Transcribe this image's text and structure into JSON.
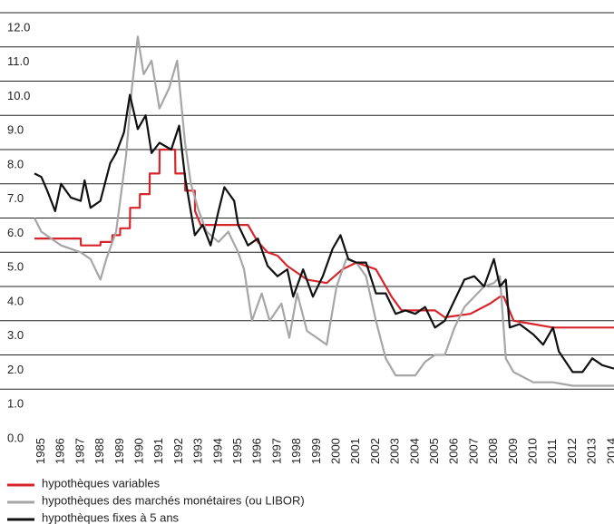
{
  "chart_data": {
    "type": "line",
    "xlim": [
      1984.65,
      2014.1
    ],
    "xticks": [
      1985,
      1986,
      1987,
      1988,
      1989,
      1990,
      1991,
      1992,
      1993,
      1994,
      1995,
      1996,
      1997,
      1998,
      1999,
      2000,
      2001,
      2002,
      2003,
      2004,
      2005,
      2006,
      2007,
      2008,
      2009,
      2010,
      2011,
      2012,
      2013,
      2014
    ],
    "ylim": [
      0,
      12
    ],
    "yticks": [
      {
        "value": 0,
        "label": "0.0"
      },
      {
        "value": 1,
        "label": "1.0"
      },
      {
        "value": 2,
        "label": "2.0"
      },
      {
        "value": 3,
        "label": "3.0"
      },
      {
        "value": 4,
        "label": "4.0"
      },
      {
        "value": 5,
        "label": "5.0"
      },
      {
        "value": 6,
        "label": "6.0"
      },
      {
        "value": 7,
        "label": "7.0"
      },
      {
        "value": 8,
        "label": "8.0"
      },
      {
        "value": 9,
        "label": "9.0"
      },
      {
        "value": 10,
        "label": "10.0"
      },
      {
        "value": 11,
        "label": "11.0"
      },
      {
        "value": 12,
        "label": "12.0"
      }
    ],
    "grid": true,
    "series": [
      {
        "name": "hypothèques variables",
        "color": "#d7262b",
        "x": [
          1984.65,
          1987,
          1987.01,
          1988,
          1988.01,
          1988.6,
          1988.61,
          1989,
          1989.01,
          1989.5,
          1989.51,
          1990,
          1990.01,
          1990.5,
          1990.51,
          1991,
          1991.01,
          1991.8,
          1991.81,
          1992.3,
          1992.31,
          1992.8,
          1992.81,
          1993.1,
          1995.5,
          1996,
          1996.5,
          1997,
          1997.5,
          1998.5,
          1999.5,
          2000.3,
          2001,
          2002,
          2002.8,
          2003.3,
          2005,
          2005.5,
          2006.8,
          2007.8,
          2008.3,
          2008.5,
          2009,
          2010,
          2011,
          2014.1
        ],
        "values": [
          5.4,
          5.4,
          5.2,
          5.2,
          5.3,
          5.3,
          5.5,
          5.5,
          5.7,
          5.7,
          6.3,
          6.3,
          6.7,
          6.7,
          7.3,
          7.3,
          8.0,
          8.0,
          7.3,
          7.3,
          6.8,
          6.8,
          6.2,
          5.8,
          5.8,
          5.3,
          5.0,
          4.9,
          4.6,
          4.2,
          4.1,
          4.5,
          4.7,
          4.5,
          3.7,
          3.3,
          3.3,
          3.1,
          3.2,
          3.5,
          3.7,
          3.7,
          3.0,
          2.9,
          2.8,
          2.8
        ]
      },
      {
        "name": "hypothèques des marchés monétaires (ou LIBOR)",
        "color": "#a6a6a6",
        "x": [
          1984.65,
          1985,
          1985.5,
          1986,
          1987,
          1987.5,
          1988,
          1988.3,
          1988.8,
          1989.3,
          1989.6,
          1989.9,
          1990.2,
          1990.6,
          1991,
          1991.5,
          1991.9,
          1992.3,
          1992.6,
          1993,
          1993.4,
          1994,
          1994.5,
          1995,
          1995.3,
          1995.7,
          1996.2,
          1996.6,
          1997.2,
          1997.6,
          1998,
          1998.5,
          1999,
          1999.5,
          2000,
          2000.5,
          2001,
          2001.5,
          2002,
          2002.5,
          2003,
          2004,
          2004.5,
          2005,
          2005.5,
          2006,
          2006.5,
          2007.5,
          2008,
          2008.3,
          2008.6,
          2009,
          2010,
          2011,
          2012,
          2013,
          2014.1
        ],
        "values": [
          6.0,
          5.6,
          5.4,
          5.2,
          5.0,
          4.8,
          4.2,
          4.8,
          5.6,
          7.8,
          9.8,
          11.3,
          10.2,
          10.6,
          9.2,
          9.8,
          10.6,
          8.2,
          7.0,
          6.2,
          5.6,
          5.3,
          5.6,
          5.0,
          4.5,
          3.0,
          3.8,
          3.0,
          3.5,
          2.5,
          3.8,
          2.7,
          2.5,
          2.3,
          4.0,
          4.8,
          4.7,
          4.3,
          3.0,
          1.9,
          1.4,
          1.4,
          1.8,
          2.0,
          2.0,
          2.8,
          3.4,
          4.0,
          4.1,
          4.3,
          1.9,
          1.5,
          1.2,
          1.2,
          1.1,
          1.1,
          1.1
        ]
      },
      {
        "name": "hypothèques fixes à 5 ans",
        "color": "#111111",
        "x": [
          1984.65,
          1985,
          1985.3,
          1985.7,
          1986,
          1986.5,
          1987,
          1987.2,
          1987.5,
          1988,
          1988.5,
          1988.8,
          1989.2,
          1989.5,
          1989.9,
          1990.3,
          1990.6,
          1991,
          1991.6,
          1992,
          1992.3,
          1992.8,
          1993.2,
          1993.6,
          1994,
          1994.3,
          1994.8,
          1995,
          1995.5,
          1996,
          1996.5,
          1997,
          1997.5,
          1997.8,
          1998.3,
          1998.8,
          1999.3,
          1999.8,
          2000.2,
          2000.6,
          2001,
          2001.5,
          2002,
          2002.5,
          2003,
          2003.5,
          2004,
          2004.5,
          2005,
          2005.5,
          2006,
          2006.5,
          2007,
          2007.5,
          2008,
          2008.3,
          2008.6,
          2008.8,
          2009.3,
          2010,
          2010.5,
          2011,
          2011.3,
          2012,
          2012.5,
          2013,
          2013.5,
          2014.1
        ],
        "values": [
          7.3,
          7.2,
          6.8,
          6.2,
          7.0,
          6.6,
          6.5,
          7.1,
          6.3,
          6.5,
          7.6,
          7.9,
          8.5,
          9.6,
          8.6,
          9.0,
          7.9,
          8.2,
          8.0,
          8.7,
          7.2,
          5.5,
          5.8,
          5.2,
          6.2,
          6.9,
          6.5,
          5.8,
          5.2,
          5.4,
          4.6,
          4.3,
          4.5,
          3.7,
          4.5,
          3.7,
          4.3,
          5.1,
          5.5,
          4.8,
          4.7,
          4.7,
          3.8,
          3.8,
          3.2,
          3.3,
          3.2,
          3.4,
          2.8,
          3.0,
          3.6,
          4.2,
          4.3,
          4.0,
          4.8,
          4.0,
          4.2,
          2.8,
          2.9,
          2.6,
          2.3,
          2.8,
          2.1,
          1.5,
          1.5,
          1.9,
          1.7,
          1.6
        ]
      }
    ]
  }
}
